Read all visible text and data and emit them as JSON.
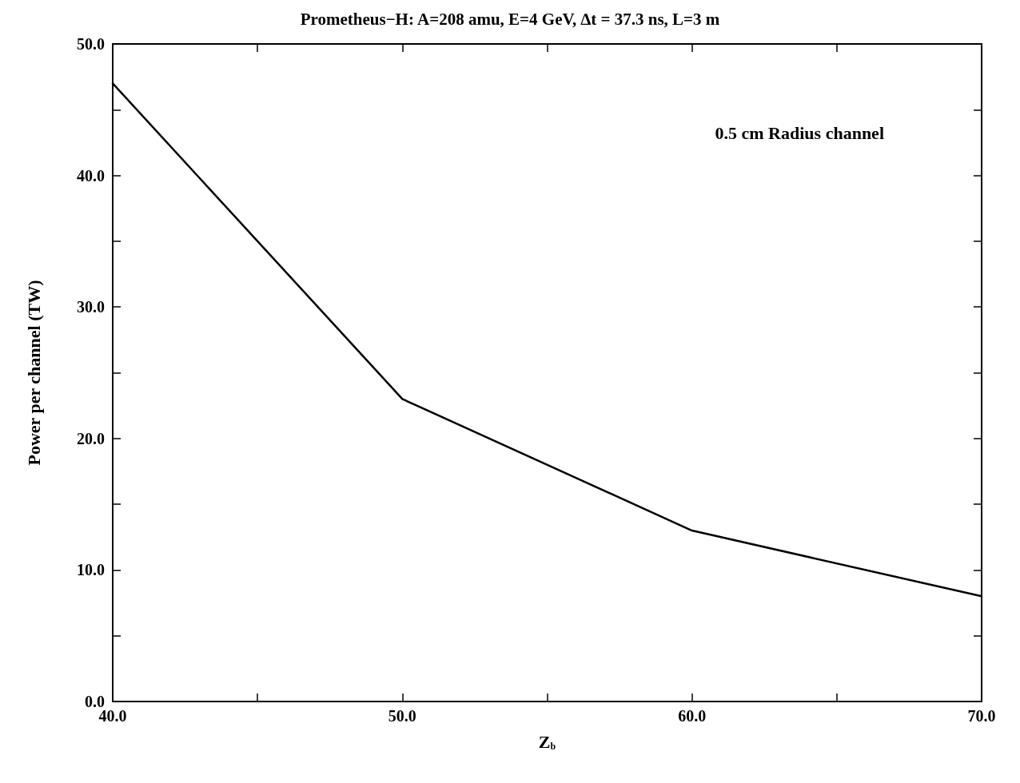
{
  "chart_data": {
    "type": "line",
    "title": "Prometheus−H: A=208 amu, E=4 GeV, ∆t = 37.3 ns, L=3 m",
    "xlabel": "Z$_{b}$",
    "ylabel": "Power per channel (TW)",
    "annotations": [
      "0.5 cm Radius channel"
    ],
    "x": [
      40,
      50,
      60,
      70
    ],
    "series": [
      {
        "color": "#000000",
        "values": [
          47,
          23,
          13,
          8
        ]
      }
    ],
    "xlim": [
      40,
      70
    ],
    "xticks": [
      {
        "value": 40,
        "label": "40.0"
      },
      {
        "value": 45,
        "label": null
      },
      {
        "value": 50,
        "label": "50.0"
      },
      {
        "value": 55,
        "label": null
      },
      {
        "value": 60,
        "label": "60.0"
      },
      {
        "value": 65,
        "label": null
      },
      {
        "value": 70,
        "label": "70.0"
      }
    ],
    "ylim": [
      0,
      50
    ],
    "yticks": [
      {
        "value": 0,
        "label": "0.0"
      },
      {
        "value": 5,
        "label": null
      },
      {
        "value": 10,
        "label": "10.0"
      },
      {
        "value": 15,
        "label": null
      },
      {
        "value": 20,
        "label": "20.0"
      },
      {
        "value": 25,
        "label": null
      },
      {
        "value": 30,
        "label": "30.0"
      },
      {
        "value": 35,
        "label": null
      },
      {
        "value": 40,
        "label": "40.0"
      },
      {
        "value": 45,
        "label": null
      },
      {
        "value": 50,
        "label": "50.0"
      }
    ],
    "grid": false,
    "marker": "none",
    "line_style": "solid"
  }
}
